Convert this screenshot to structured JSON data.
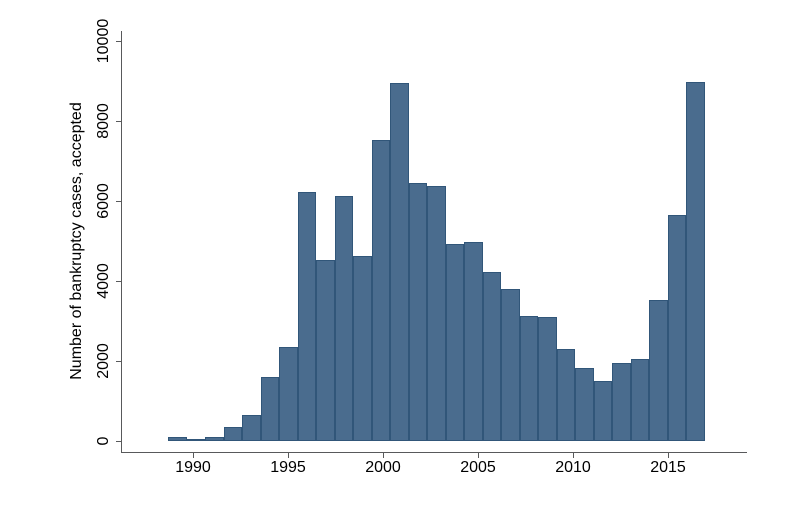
{
  "figure": {
    "background": "#ffffff"
  },
  "chart_data": {
    "type": "bar",
    "title": "",
    "xlabel": "",
    "ylabel": "Number of bankruptcy cases, accepted",
    "categories": [
      1989,
      1990,
      1991,
      1992,
      1993,
      1994,
      1995,
      1996,
      1997,
      1998,
      1999,
      2000,
      2001,
      2002,
      2003,
      2004,
      2005,
      2006,
      2007,
      2008,
      2009,
      2010,
      2011,
      2012,
      2013,
      2014,
      2015,
      2016,
      2017
    ],
    "values": [
      100,
      60,
      110,
      350,
      650,
      1600,
      2350,
      6225,
      4525,
      6125,
      4625,
      7525,
      8940,
      6440,
      6375,
      4925,
      4980,
      4230,
      3790,
      3125,
      3100,
      2300,
      1825,
      1500,
      1950,
      2050,
      3525,
      5650,
      8980
    ],
    "ylim": [
      0,
      10000
    ],
    "yticks": [
      "0",
      "2000",
      "4000",
      "6000",
      "8000",
      "10000"
    ],
    "xticks": [
      "1990",
      "1995",
      "2000",
      "2005",
      "2010",
      "2015"
    ],
    "grid": false,
    "legend": "none",
    "colors": {
      "bar_fill": "#4a6c8e",
      "bar_border": "#315679",
      "axis": "#58595b",
      "label_text": "#000000"
    }
  }
}
